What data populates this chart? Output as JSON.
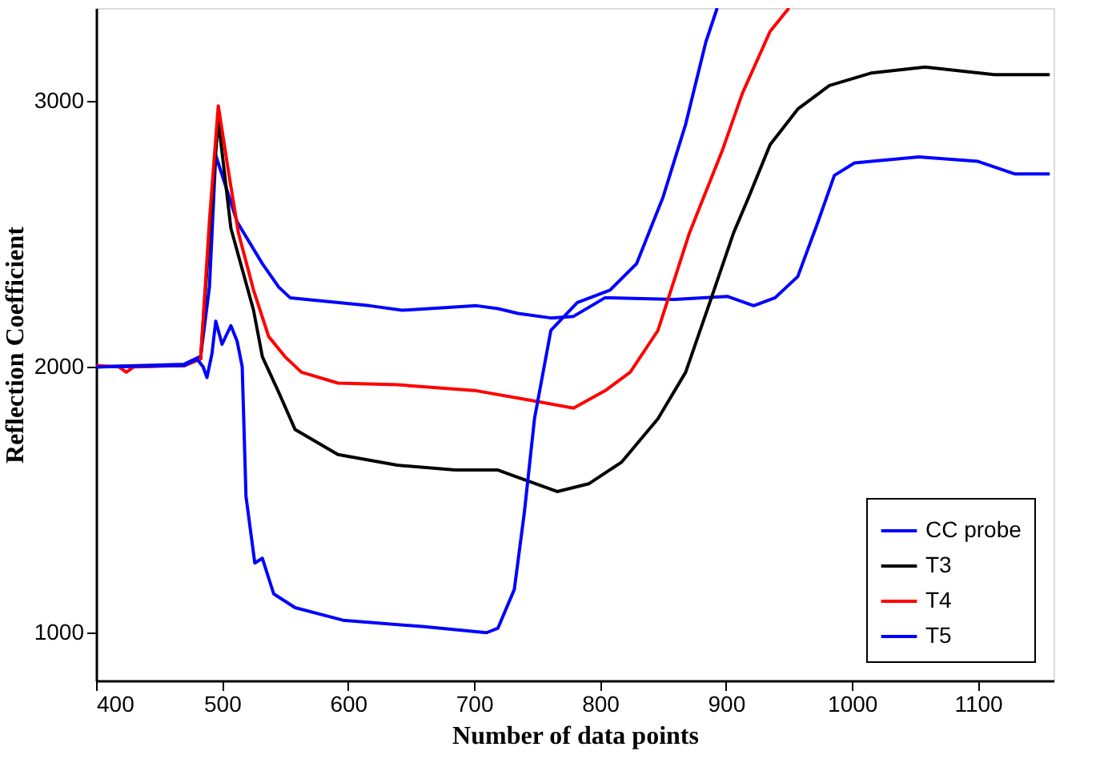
{
  "chart_data": {
    "type": "line",
    "xlabel": "Number of data points",
    "ylabel": "Reflection Coefficient",
    "xlim": [
      400,
      1160
    ],
    "xticks": [
      400,
      500,
      600,
      700,
      800,
      900,
      1000,
      1100
    ],
    "ylim": [
      820,
      3350
    ],
    "yticks": [
      1000,
      2000,
      3000
    ],
    "grid": false,
    "legend": "bottom right",
    "marker": "none",
    "line_style": "solid",
    "series": [
      {
        "name": "CC probe",
        "color": "#0000ff",
        "x": [
          400,
          470,
          483,
          490,
          495,
          512,
          532,
          545,
          554,
          617,
          643,
          702,
          719,
          735,
          761,
          779,
          804,
          859,
          901,
          922,
          939,
          957,
          973,
          986,
          1002,
          1053,
          1100,
          1129,
          1157
        ],
        "values": [
          2000,
          2010,
          2040,
          2300,
          2796,
          2545,
          2388,
          2300,
          2260,
          2230,
          2213,
          2230,
          2219,
          2201,
          2184,
          2190,
          2260,
          2254,
          2265,
          2230,
          2260,
          2340,
          2545,
          2720,
          2767,
          2790,
          2773,
          2726,
          2726
        ]
      },
      {
        "name": "T3",
        "color": "#000000",
        "x": [
          400,
          470,
          483,
          490,
          497,
          507,
          525,
          532,
          545,
          558,
          592,
          639,
          685,
          719,
          732,
          766,
          791,
          817,
          846,
          868,
          888,
          906,
          918,
          935,
          957,
          982,
          1015,
          1058,
          1113,
          1157
        ],
        "values": [
          2000,
          2005,
          2030,
          2500,
          2930,
          2522,
          2213,
          2038,
          1904,
          1764,
          1670,
          1630,
          1612,
          1612,
          1589,
          1531,
          1560,
          1641,
          1805,
          1980,
          2254,
          2504,
          2638,
          2836,
          2970,
          3058,
          3105,
          3128,
          3099,
          3099
        ]
      },
      {
        "name": "T4",
        "color": "#ff0000",
        "x": [
          400,
          418,
          424,
          430,
          470,
          483,
          490,
          497,
          505,
          513,
          525,
          537,
          550,
          563,
          592,
          639,
          702,
          744,
          779,
          804,
          824,
          846,
          871,
          897,
          913,
          935,
          950
        ],
        "values": [
          2005,
          2000,
          1980,
          2000,
          2005,
          2030,
          2550,
          2982,
          2738,
          2504,
          2289,
          2114,
          2038,
          1980,
          1939,
          1933,
          1910,
          1875,
          1845,
          1910,
          1980,
          2137,
          2504,
          2813,
          3029,
          3262,
          3350
        ]
      },
      {
        "name": "T5",
        "color": "#0000ff",
        "x": [
          400,
          470,
          480,
          485,
          488,
          492,
          495,
          500,
          507,
          512,
          516,
          519,
          526,
          532,
          541,
          558,
          596,
          659,
          710,
          719,
          732,
          740,
          748,
          761,
          782,
          808,
          829,
          850,
          868,
          884,
          893
        ],
        "values": [
          2000,
          2005,
          2030,
          2000,
          1960,
          2050,
          2172,
          2085,
          2155,
          2096,
          2000,
          1513,
          1262,
          1280,
          1146,
          1094,
          1047,
          1023,
          1000,
          1017,
          1163,
          1455,
          1805,
          2137,
          2242,
          2289,
          2388,
          2638,
          2913,
          3222,
          3350
        ]
      }
    ]
  }
}
